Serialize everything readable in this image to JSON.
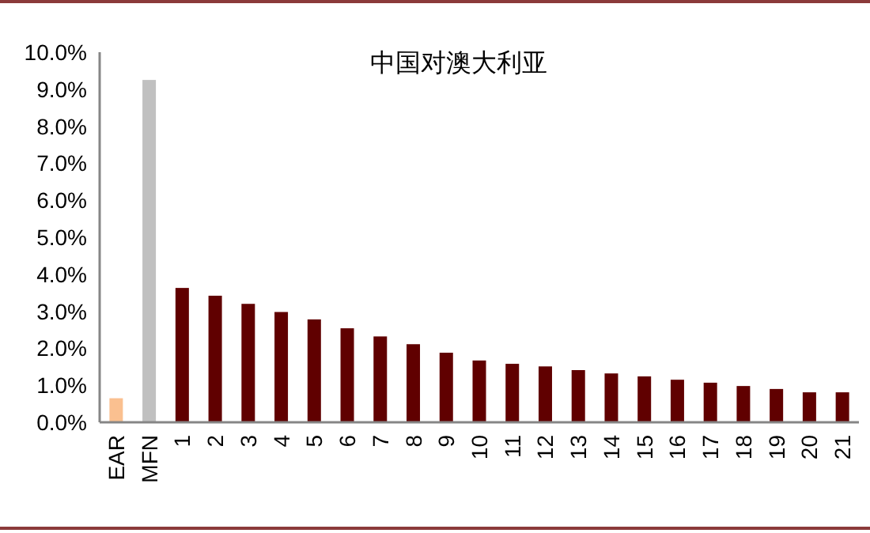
{
  "chart_data": {
    "type": "bar",
    "title": "中国对澳大利亚",
    "categories": [
      "EAR",
      "MFN",
      "1",
      "2",
      "3",
      "4",
      "5",
      "6",
      "7",
      "8",
      "9",
      "10",
      "11",
      "12",
      "13",
      "14",
      "15",
      "16",
      "17",
      "18",
      "19",
      "20",
      "21"
    ],
    "values": [
      0.65,
      9.25,
      3.63,
      3.42,
      3.2,
      2.98,
      2.78,
      2.54,
      2.32,
      2.11,
      1.88,
      1.67,
      1.58,
      1.51,
      1.41,
      1.32,
      1.24,
      1.15,
      1.07,
      0.98,
      0.9,
      0.81,
      0.81
    ],
    "colors": [
      "#fac090",
      "#c0c0c0",
      "#600000",
      "#600000",
      "#600000",
      "#600000",
      "#600000",
      "#600000",
      "#600000",
      "#600000",
      "#600000",
      "#600000",
      "#600000",
      "#600000",
      "#600000",
      "#600000",
      "#600000",
      "#600000",
      "#600000",
      "#600000",
      "#600000",
      "#600000",
      "#600000"
    ],
    "ylim": [
      0,
      10
    ],
    "yticks": [
      {
        "value": 0,
        "label": "0.0%"
      },
      {
        "value": 1,
        "label": "1.0%"
      },
      {
        "value": 2,
        "label": "2.0%"
      },
      {
        "value": 3,
        "label": "3.0%"
      },
      {
        "value": 4,
        "label": "4.0%"
      },
      {
        "value": 5,
        "label": "5.0%"
      },
      {
        "value": 6,
        "label": "6.0%"
      },
      {
        "value": 7,
        "label": "7.0%"
      },
      {
        "value": 8,
        "label": "8.0%"
      },
      {
        "value": 9,
        "label": "9.0%"
      },
      {
        "value": 10,
        "label": "10.0%"
      }
    ],
    "grid": false
  }
}
